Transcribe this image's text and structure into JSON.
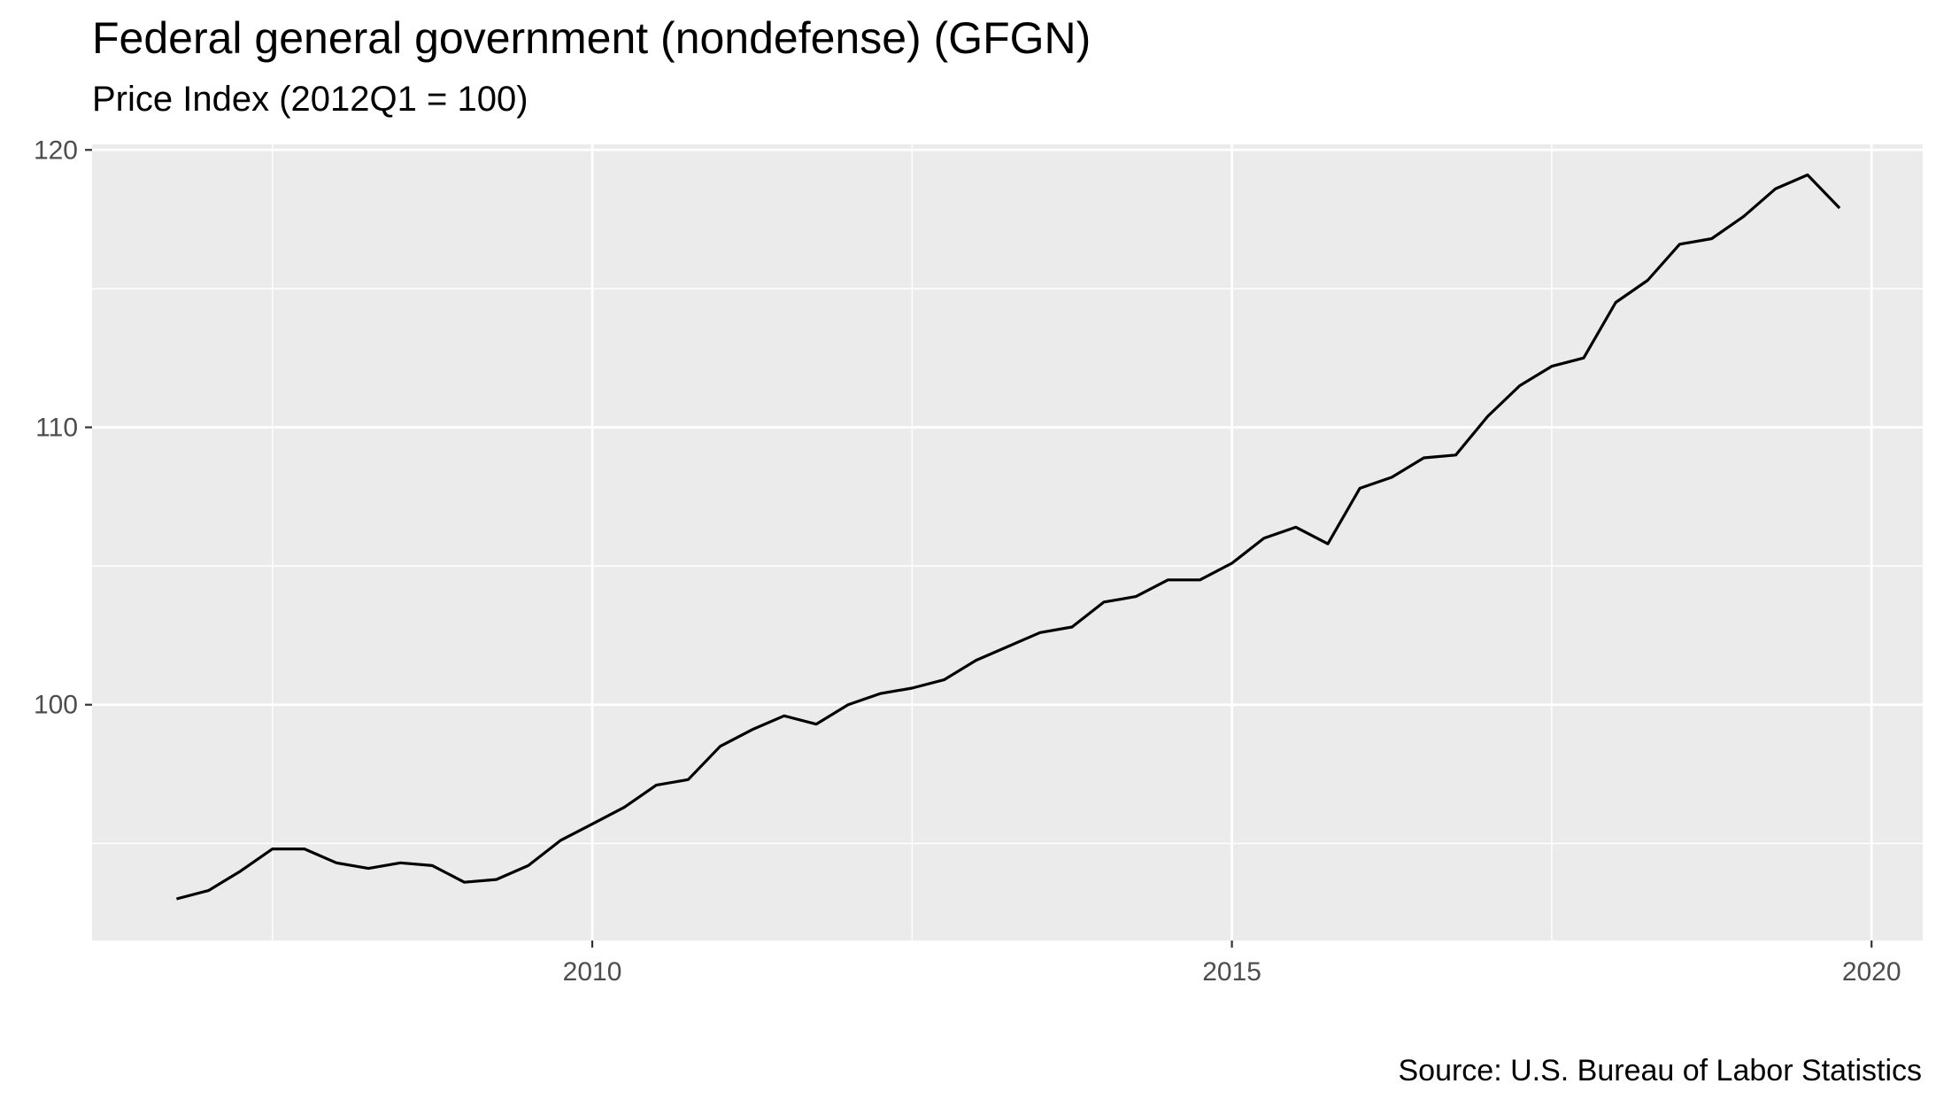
{
  "chart_data": {
    "type": "line",
    "title": "Federal general government (nondefense) (GFGN)",
    "subtitle": "Price Index (2012Q1 = 100)",
    "caption": "Source: U.S. Bureau of Labor Statistics",
    "xlabel": "",
    "ylabel": "",
    "xlim": [
      2006.09,
      2020.4
    ],
    "ylim": [
      91.5,
      120.2
    ],
    "x_ticks": [
      2010,
      2015,
      2020
    ],
    "x_tick_labels": [
      "2010",
      "2015",
      "2020"
    ],
    "y_ticks": [
      100,
      110,
      120
    ],
    "y_tick_labels": [
      "100",
      "110",
      "120"
    ],
    "grid": true,
    "background": "#EBEBEB",
    "line_color": "#000000",
    "series": [
      {
        "x": [
          2006.75,
          2007.0,
          2007.25,
          2007.5,
          2007.75,
          2008.0,
          2008.25,
          2008.5,
          2008.75,
          2009.0,
          2009.25,
          2009.5,
          2009.75,
          2010.0,
          2010.25,
          2010.5,
          2010.75,
          2011.0,
          2011.25,
          2011.5,
          2011.75,
          2012.0,
          2012.25,
          2012.5,
          2012.75,
          2013.0,
          2013.25,
          2013.5,
          2013.75,
          2014.0,
          2014.25,
          2014.5,
          2014.75,
          2015.0,
          2015.25,
          2015.5,
          2015.75,
          2016.0,
          2016.25,
          2016.5,
          2016.75,
          2017.0,
          2017.25,
          2017.5,
          2017.75,
          2018.0,
          2018.25,
          2018.5,
          2018.75,
          2019.0,
          2019.25,
          2019.5,
          2019.75
        ],
        "values": [
          93.0,
          93.3,
          94.0,
          94.8,
          94.8,
          94.3,
          94.1,
          94.3,
          94.2,
          93.6,
          93.7,
          94.2,
          95.1,
          95.7,
          96.3,
          97.1,
          97.3,
          98.5,
          99.1,
          99.6,
          99.3,
          100.0,
          100.4,
          100.6,
          100.9,
          101.6,
          102.1,
          102.6,
          102.8,
          103.7,
          103.9,
          104.5,
          104.5,
          105.1,
          106.0,
          106.4,
          105.8,
          107.8,
          108.2,
          108.9,
          109.0,
          110.4,
          111.5,
          112.2,
          112.5,
          114.5,
          115.3,
          116.6,
          116.8,
          117.6,
          118.6,
          119.1,
          117.9
        ]
      }
    ]
  }
}
